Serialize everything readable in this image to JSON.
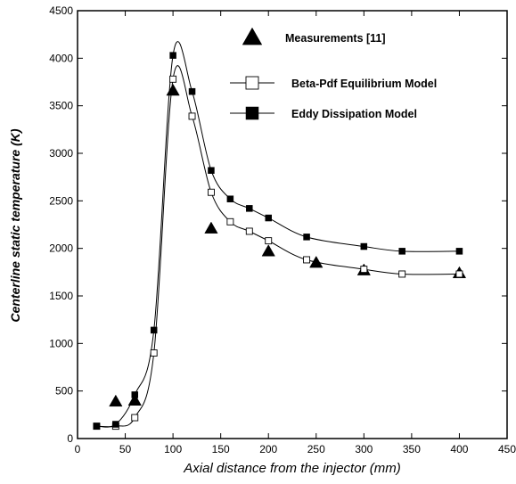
{
  "chart_data": {
    "type": "scatter",
    "xlabel": "Axial distance from the injector (mm)",
    "ylabel": "Centerline static temperature (K)",
    "xlim": [
      0,
      450
    ],
    "ylim": [
      0,
      4500
    ],
    "xticks": [
      "0",
      "50",
      "100",
      "150",
      "200",
      "250",
      "300",
      "350",
      "400",
      "450"
    ],
    "yticks": [
      "0",
      "500",
      "1000",
      "1500",
      "2000",
      "2500",
      "3000",
      "3500",
      "4000",
      "4500"
    ],
    "grid": false,
    "legend_position": "top-right",
    "series": [
      {
        "name": "Measurements [11]",
        "marker": "filled-triangle",
        "line": false,
        "x": [
          40,
          60,
          100,
          140,
          200,
          250,
          300,
          400
        ],
        "y": [
          390,
          400,
          3660,
          2210,
          1970,
          1850,
          1770,
          1740
        ]
      },
      {
        "name": "Beta-Pdf Equilibrium Model",
        "marker": "open-square",
        "line": true,
        "x": [
          20,
          40,
          60,
          80,
          100,
          120,
          140,
          160,
          180,
          200,
          240,
          300,
          340,
          400
        ],
        "y": [
          130,
          130,
          220,
          900,
          3780,
          3390,
          2590,
          2280,
          2180,
          2080,
          1880,
          1780,
          1730,
          1730
        ]
      },
      {
        "name": "Eddy Dissipation Model",
        "marker": "filled-square",
        "line": true,
        "x": [
          20,
          40,
          60,
          80,
          100,
          120,
          140,
          160,
          180,
          200,
          240,
          300,
          340,
          400
        ],
        "y": [
          130,
          150,
          460,
          1140,
          4030,
          3650,
          2820,
          2520,
          2420,
          2320,
          2120,
          2020,
          1970,
          1970
        ]
      }
    ]
  }
}
